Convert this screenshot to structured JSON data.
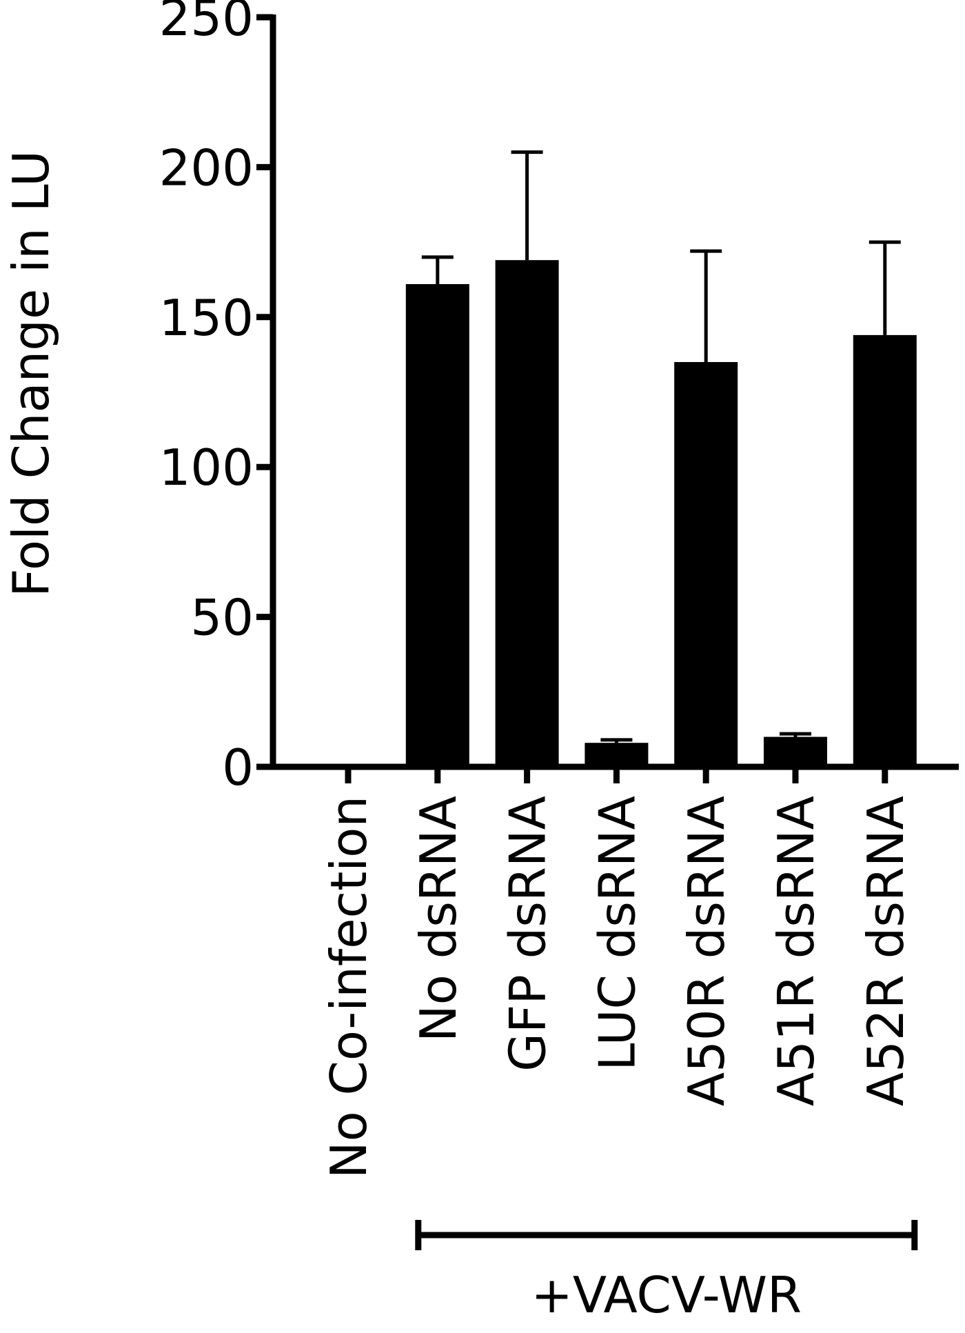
{
  "chart_data": {
    "type": "bar",
    "y_label": "Fold Change in LU",
    "categories": [
      "No Co-infection",
      "No dsRNA",
      "GFP dsRNA",
      "LUC dsRNA",
      "A50R dsRNA",
      "A51R dsRNA",
      "A52R dsRNA"
    ],
    "values": [
      0,
      161,
      169,
      8,
      135,
      10,
      144
    ],
    "errors": [
      null,
      9,
      36,
      1,
      37,
      1,
      31
    ],
    "color": "#000000",
    "ylim": [
      0,
      250
    ],
    "yticks": [
      0,
      50,
      100,
      150,
      200,
      250
    ],
    "group_label": "+VACV-WR"
  }
}
